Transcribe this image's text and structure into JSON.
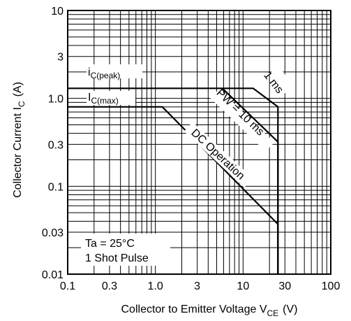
{
  "chart_data": {
    "type": "line",
    "xscale": "log",
    "yscale": "log",
    "xlim": [
      0.1,
      100
    ],
    "ylim": [
      0.01,
      10
    ],
    "grid": true,
    "xlabel": {
      "text": "Collector to Emitter Voltage  V",
      "sub": "CE",
      "unit": "(V)"
    },
    "ylabel": {
      "text": "Collector Current  I",
      "sub": "C",
      "unit": "(A)"
    },
    "x_ticks": [
      {
        "value": 0.1,
        "label": "0.1"
      },
      {
        "value": 0.3,
        "label": "0.3"
      },
      {
        "value": 1,
        "label": "1.0"
      },
      {
        "value": 3,
        "label": "3"
      },
      {
        "value": 10,
        "label": "10"
      },
      {
        "value": 30,
        "label": "30"
      },
      {
        "value": 100,
        "label": "100"
      }
    ],
    "y_ticks": [
      {
        "value": 0.01,
        "label": "0.01"
      },
      {
        "value": 0.03,
        "label": "0.03"
      },
      {
        "value": 0.1,
        "label": "0.1"
      },
      {
        "value": 0.3,
        "label": "0.3"
      },
      {
        "value": 1,
        "label": "1.0"
      },
      {
        "value": 3,
        "label": "3"
      },
      {
        "value": 10,
        "label": "10"
      }
    ],
    "series": [
      {
        "name": "1 ms",
        "points": [
          [
            0.1,
            1.3
          ],
          [
            13,
            1.3
          ],
          [
            25,
            0.8
          ],
          [
            25,
            0.01
          ]
        ]
      },
      {
        "name": "PW = 10 ms",
        "points": [
          [
            5.8,
            1.3
          ],
          [
            25,
            0.32
          ],
          [
            25,
            0.01
          ]
        ]
      },
      {
        "name": "DC Operation",
        "points": [
          [
            0.1,
            0.8
          ],
          [
            1.2,
            0.8
          ],
          [
            25,
            0.037
          ],
          [
            25,
            0.01
          ]
        ]
      }
    ],
    "annotations": [
      {
        "text": "i",
        "sub": "C(peak)",
        "x": 0.115,
        "y": 1.52
      },
      {
        "text": "I",
        "sub": "C(max)",
        "x": 0.115,
        "y": 0.92
      }
    ],
    "conditions": [
      "Ta = 25°C",
      "1 Shot Pulse"
    ]
  }
}
